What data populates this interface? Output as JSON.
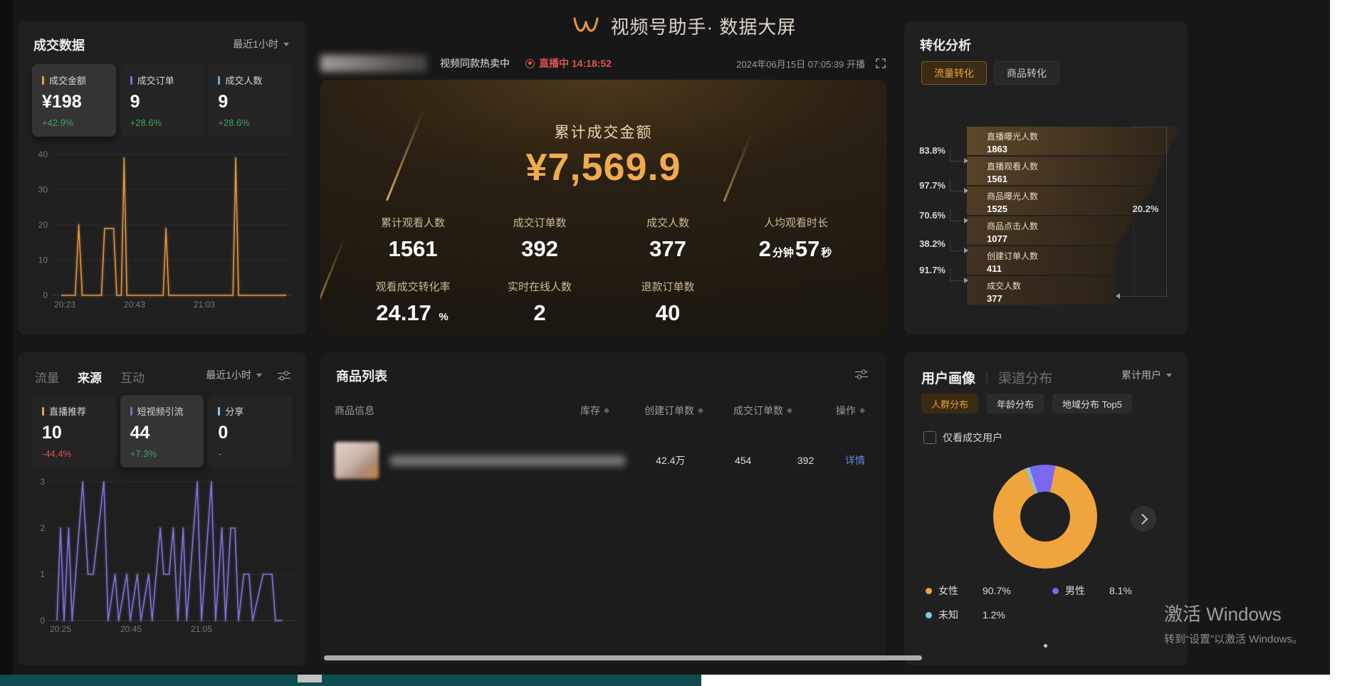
{
  "header": {
    "title": "视频号助手· 数据大屏",
    "stream_status": "视频同款热卖中",
    "live_badge": "直播中",
    "live_duration": "14:18:52",
    "broadcast_start": "2024年06月15日 07:05:39 开播"
  },
  "sales_panel": {
    "title": "成交数据",
    "time_range": "最近1小时",
    "cards": [
      {
        "label": "成交金额",
        "value": "¥198",
        "change": "+42.9%",
        "trend": "up",
        "marker": "#e8a33d"
      },
      {
        "label": "成交订单",
        "value": "9",
        "change": "+28.6%",
        "trend": "up",
        "marker": "#7a6fd0"
      },
      {
        "label": "成交人数",
        "value": "9",
        "change": "+28.6%",
        "trend": "up",
        "marker": "#6aa8d8"
      }
    ]
  },
  "traffic_panel": {
    "tabs": [
      {
        "label": "流量",
        "active": false
      },
      {
        "label": "来源",
        "active": true
      },
      {
        "label": "互动",
        "active": false
      }
    ],
    "time_range": "最近1小时",
    "cards": [
      {
        "label": "直播推荐",
        "value": "10",
        "change": "-44.4%",
        "trend": "down",
        "marker": "#e8a33d"
      },
      {
        "label": "短视频引流",
        "value": "44",
        "change": "+7.3%",
        "trend": "up",
        "marker": "#7a6fd0"
      },
      {
        "label": "分享",
        "value": "0",
        "change": "-",
        "trend": "flat",
        "marker": "#8fc7e8"
      }
    ]
  },
  "summary_panel": {
    "title": "累计成交金额",
    "amount": "¥7,569.9",
    "metrics": [
      {
        "label": "累计观看人数",
        "value": "1561"
      },
      {
        "label": "成交订单数",
        "value": "392"
      },
      {
        "label": "成交人数",
        "value": "377"
      },
      {
        "label": "人均观看时长",
        "value": "2",
        "unit1": "分钟",
        "value2": "57",
        "unit2": "秒"
      },
      {
        "label": "观看成交转化率",
        "value": "24.17",
        "unit": "%"
      },
      {
        "label": "实时在线人数",
        "value": "2"
      },
      {
        "label": "退款订单数",
        "value": "40"
      }
    ]
  },
  "product_panel": {
    "title": "商品列表",
    "columns": [
      "商品信息",
      "库存",
      "创建订单数",
      "成交订单数",
      "操作"
    ],
    "rows": [
      {
        "stock": "42.4万",
        "created_orders": "454",
        "deal_orders": "392",
        "action": "详情"
      }
    ]
  },
  "conversion_panel": {
    "title": "转化分析",
    "tabs": [
      {
        "label": "流量转化",
        "active": true
      },
      {
        "label": "商品转化",
        "active": false
      }
    ]
  },
  "user_panel": {
    "tabs": [
      {
        "label": "用户画像",
        "active": true
      },
      {
        "label": "渠道分布",
        "active": false
      }
    ],
    "time_range": "累计用户",
    "sub_tabs": [
      {
        "label": "人群分布",
        "active": true
      },
      {
        "label": "年龄分布",
        "active": false
      },
      {
        "label": "地域分布 Top5",
        "active": false
      }
    ],
    "checkbox_label": "仅看成交用户"
  },
  "watermark": {
    "line1": "激活 Windows",
    "line2": "转到“设置”以激活 Windows。"
  },
  "chart_data": [
    {
      "id": "sales-trend",
      "type": "line",
      "series_label": "成交金额",
      "color": "#e8963c",
      "ylim": [
        0,
        40
      ],
      "yticks": [
        0,
        10,
        20,
        30,
        40
      ],
      "xticks": [
        {
          "label": "20:23",
          "min": 0
        },
        {
          "label": "20:43",
          "min": 20
        },
        {
          "label": "21:03",
          "min": 40
        }
      ],
      "grid": true,
      "points_min_value": [
        [
          -1,
          0
        ],
        [
          3,
          0
        ],
        [
          4,
          20
        ],
        [
          5,
          0
        ],
        [
          10.5,
          0
        ],
        [
          11.4,
          19
        ],
        [
          14,
          19
        ],
        [
          14.9,
          0
        ],
        [
          16.2,
          0
        ],
        [
          17,
          39
        ],
        [
          17.8,
          0
        ],
        [
          28.2,
          0
        ],
        [
          29,
          19
        ],
        [
          29.8,
          0
        ],
        [
          48.2,
          0
        ],
        [
          49,
          39
        ],
        [
          49.8,
          0
        ],
        [
          52,
          0
        ],
        [
          63.5,
          0
        ]
      ]
    },
    {
      "id": "traffic-trend",
      "type": "line",
      "series_label": "短视频引流",
      "color": "#7d74dd",
      "ylim": [
        0,
        3
      ],
      "yticks": [
        0,
        1,
        2,
        3
      ],
      "xticks": [
        {
          "label": "20:25",
          "min": 0
        },
        {
          "label": "20:45",
          "min": 20
        },
        {
          "label": "21:05",
          "min": 40
        }
      ],
      "grid": true,
      "points_min_value": [
        [
          -1,
          0
        ],
        [
          0,
          2
        ],
        [
          1,
          0
        ],
        [
          2.3,
          2
        ],
        [
          3.3,
          0
        ],
        [
          6.3,
          3
        ],
        [
          7.8,
          1
        ],
        [
          9.3,
          1
        ],
        [
          12.3,
          3
        ],
        [
          13.5,
          0
        ],
        [
          15.5,
          1
        ],
        [
          16.5,
          0
        ],
        [
          18.8,
          1
        ],
        [
          19.8,
          0
        ],
        [
          21.8,
          1
        ],
        [
          22.8,
          0
        ],
        [
          25,
          1
        ],
        [
          26,
          0
        ],
        [
          28.3,
          2
        ],
        [
          29.3,
          1
        ],
        [
          30.8,
          1
        ],
        [
          32,
          2
        ],
        [
          33.3,
          0
        ],
        [
          34.8,
          2
        ],
        [
          35.8,
          0
        ],
        [
          38.8,
          3
        ],
        [
          40,
          0
        ],
        [
          42.8,
          3
        ],
        [
          44,
          0
        ],
        [
          45.8,
          2
        ],
        [
          46.8,
          0
        ],
        [
          48.3,
          2
        ],
        [
          49.5,
          2
        ],
        [
          50.5,
          0
        ],
        [
          52,
          1
        ],
        [
          53.5,
          1
        ],
        [
          54.5,
          0
        ],
        [
          57.5,
          1
        ],
        [
          60,
          1
        ],
        [
          61,
          0
        ],
        [
          63,
          0
        ]
      ]
    },
    {
      "id": "conversion-funnel",
      "type": "funnel",
      "stages": [
        {
          "label": "直播曝光人数",
          "value": 1863
        },
        {
          "label": "直播观看人数",
          "value": 1561
        },
        {
          "label": "商品曝光人数",
          "value": 1525
        },
        {
          "label": "商品点击人数",
          "value": 1077
        },
        {
          "label": "创建订单人数",
          "value": 411
        },
        {
          "label": "成交人数",
          "value": 377
        }
      ],
      "step_rates": [
        "83.8%",
        "97.7%",
        "70.6%",
        "38.2%",
        "91.7%"
      ],
      "overall_rate": "20.2%"
    },
    {
      "id": "gender-distribution",
      "type": "pie",
      "donut": true,
      "legend_position": "bottom",
      "slices": [
        {
          "label": "女性",
          "pct": 90.7,
          "color": "#f0a43c"
        },
        {
          "label": "男性",
          "pct": 8.1,
          "color": "#7b68ee"
        },
        {
          "label": "未知",
          "pct": 1.2,
          "color": "#7ec8e3"
        }
      ]
    }
  ]
}
